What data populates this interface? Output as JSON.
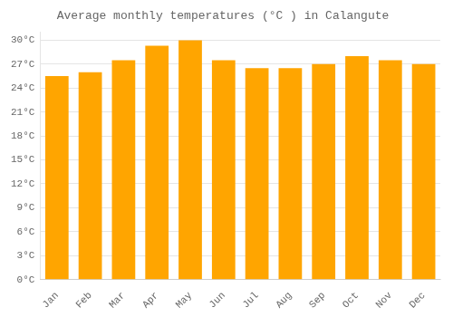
{
  "chart_data": {
    "type": "bar",
    "title": "Average monthly temperatures (°C ) in Calangute",
    "categories": [
      "Jan",
      "Feb",
      "Mar",
      "Apr",
      "May",
      "Jun",
      "Jul",
      "Aug",
      "Sep",
      "Oct",
      "Nov",
      "Dec"
    ],
    "values": [
      25.5,
      26.0,
      27.5,
      29.3,
      30.0,
      27.5,
      26.5,
      26.5,
      27.0,
      28.0,
      27.5,
      27.0
    ],
    "color": "#FFA500",
    "ylim": [
      0,
      31
    ],
    "yticks": [
      {
        "value": 0,
        "label": "0°C"
      },
      {
        "value": 3,
        "label": "3°C"
      },
      {
        "value": 6,
        "label": "6°C"
      },
      {
        "value": 9,
        "label": "9°C"
      },
      {
        "value": 12,
        "label": "12°C"
      },
      {
        "value": 15,
        "label": "15°C"
      },
      {
        "value": 18,
        "label": "18°C"
      },
      {
        "value": 21,
        "label": "21°C"
      },
      {
        "value": 24,
        "label": "24°C"
      },
      {
        "value": 27,
        "label": "27°C"
      },
      {
        "value": 30,
        "label": "30°C"
      }
    ],
    "grid": true
  }
}
